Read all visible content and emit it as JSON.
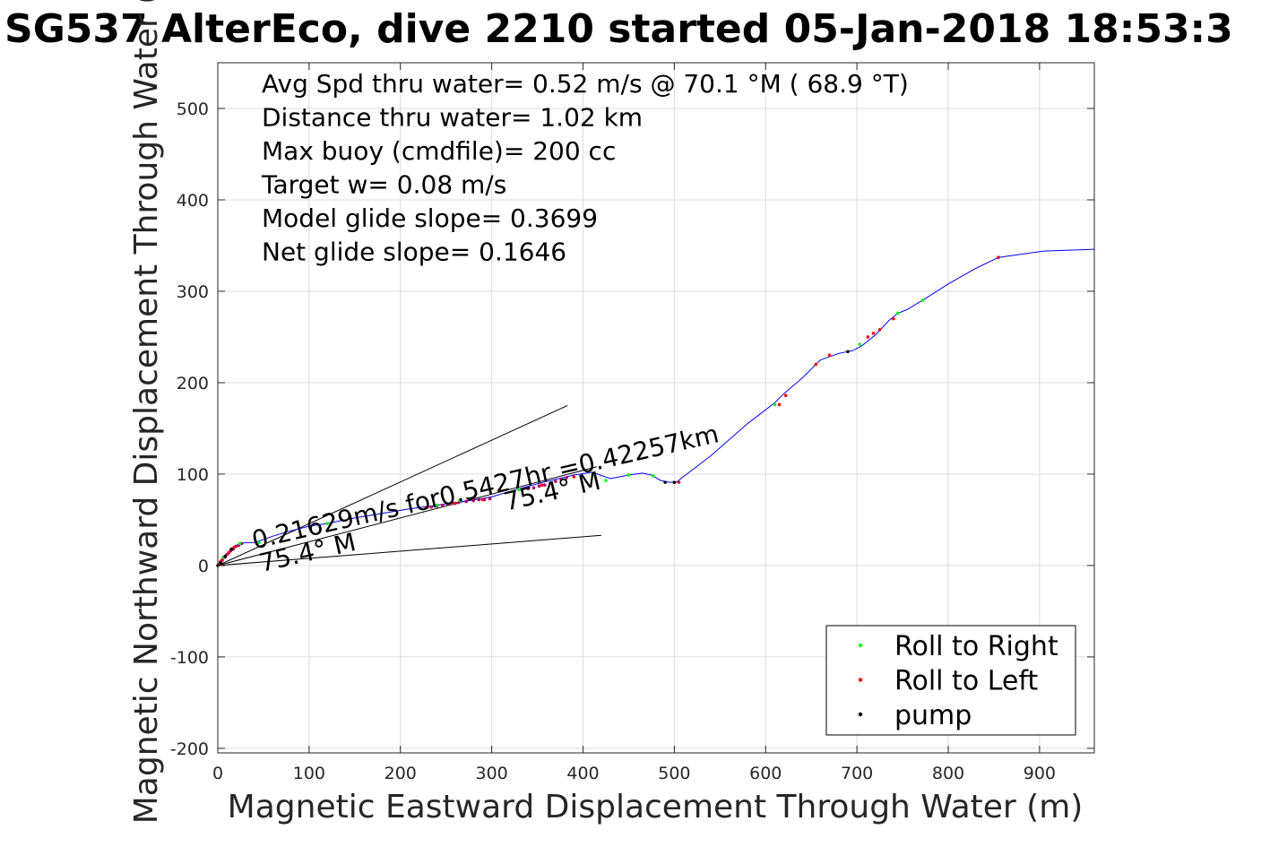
{
  "chart_data": {
    "type": "scatter",
    "title": "SG537 AlterEco, dive 2210 started 05-Jan-2018 18:53:3",
    "xlabel": "Magnetic Eastward Displacement Through Water (m)",
    "ylabel": "Magnetic Northward Displacement Through Water (",
    "xlim": [
      0,
      960
    ],
    "ylim": [
      -205,
      550
    ],
    "xticks": [
      0,
      100,
      200,
      300,
      400,
      500,
      600,
      700,
      800,
      900
    ],
    "yticks": [
      -200,
      -100,
      0,
      100,
      200,
      300,
      400,
      500
    ],
    "grid": true,
    "legend_position": "bottom-right",
    "annotations": [
      "Avg Spd thru water=  0.52 m/s @  70.1 °M ( 68.9 °T)",
      "Distance thru water=  1.02 km",
      "Max buoy (cmdfile)= 200 cc",
      "Target w= 0.08 m/s",
      "Model glide slope= 0.3699",
      "Net glide slope= 0.1646"
    ],
    "rotated_labels": [
      {
        "text": "0.21629m/s for0.5427hr =0.42257km",
        "x": 40,
        "y": 18,
        "angle": -13
      },
      {
        "text": "75.4° M",
        "x": 48,
        "y": -7,
        "angle": -13
      },
      {
        "text": "75.4° M",
        "x": 316,
        "y": 60,
        "angle": -13
      }
    ],
    "track": {
      "name": "track",
      "color": "#0000ff",
      "x": [
        0,
        5,
        10,
        16,
        22,
        30,
        40,
        60,
        80,
        100,
        120,
        150,
        180,
        210,
        240,
        270,
        300,
        330,
        360,
        390,
        410,
        430,
        450,
        465,
        475,
        485,
        495,
        502,
        540,
        580,
        610,
        620,
        640,
        660,
        680,
        695,
        705,
        720,
        735,
        745,
        755,
        775,
        800,
        830,
        855,
        905,
        960
      ],
      "y": [
        0,
        6,
        13,
        19,
        23,
        25,
        25,
        32,
        38,
        43,
        46,
        52,
        57,
        62,
        66,
        70,
        75,
        84,
        92,
        99,
        102,
        95,
        99,
        101,
        99,
        93,
        91,
        91,
        120,
        155,
        178,
        188,
        205,
        225,
        232,
        235,
        240,
        252,
        268,
        276,
        280,
        292,
        308,
        325,
        337,
        344,
        346
      ]
    },
    "cone_lines": [
      {
        "x": [
          0,
          383
        ],
        "y": [
          0,
          175
        ]
      },
      {
        "x": [
          0,
          420
        ],
        "y": [
          0,
          33
        ]
      },
      {
        "x": [
          0,
          415
        ],
        "y": [
          0,
          108
        ]
      }
    ],
    "series": [
      {
        "name": "Roll to Right",
        "color": "#00ff00",
        "x": [
          6,
          24,
          45,
          120,
          240,
          265,
          330,
          425,
          450,
          477,
          610,
          703,
          745,
          772
        ],
        "y": [
          9,
          24,
          25,
          46,
          66,
          71,
          83,
          93,
          99,
          98,
          176,
          242,
          276,
          290
        ]
      },
      {
        "name": "Roll to Left",
        "color": "#ff0000",
        "x": [
          2,
          4,
          12,
          18,
          230,
          260,
          290,
          355,
          390,
          505,
          615,
          622,
          655,
          670,
          712,
          718,
          725,
          740,
          855
        ],
        "y": [
          1,
          5,
          14,
          20,
          64,
          68,
          72,
          88,
          97,
          91,
          176,
          186,
          220,
          230,
          250,
          254,
          258,
          270,
          337
        ]
      },
      {
        "name": "pump",
        "color": "#000000",
        "x": [
          0,
          3,
          8,
          15,
          490,
          500,
          690
        ],
        "y": [
          0,
          3,
          10,
          18,
          91,
          91,
          234
        ]
      }
    ],
    "magenta_dots": {
      "color": "#b0006a",
      "x": [
        1,
        3,
        5,
        8,
        10,
        12,
        14,
        17,
        20,
        23,
        26,
        228,
        234,
        240,
        246,
        252,
        258,
        264,
        272,
        280,
        286,
        292,
        298,
        340,
        346,
        352,
        358,
        364,
        370,
        376,
        382
      ],
      "y": [
        1,
        4,
        6,
        9,
        12,
        14,
        16,
        18,
        21,
        22,
        24,
        63,
        64,
        65,
        66,
        67,
        68,
        69,
        70,
        71,
        72,
        72,
        73,
        84,
        85,
        87,
        88,
        90,
        92,
        94,
        96
      ]
    }
  }
}
